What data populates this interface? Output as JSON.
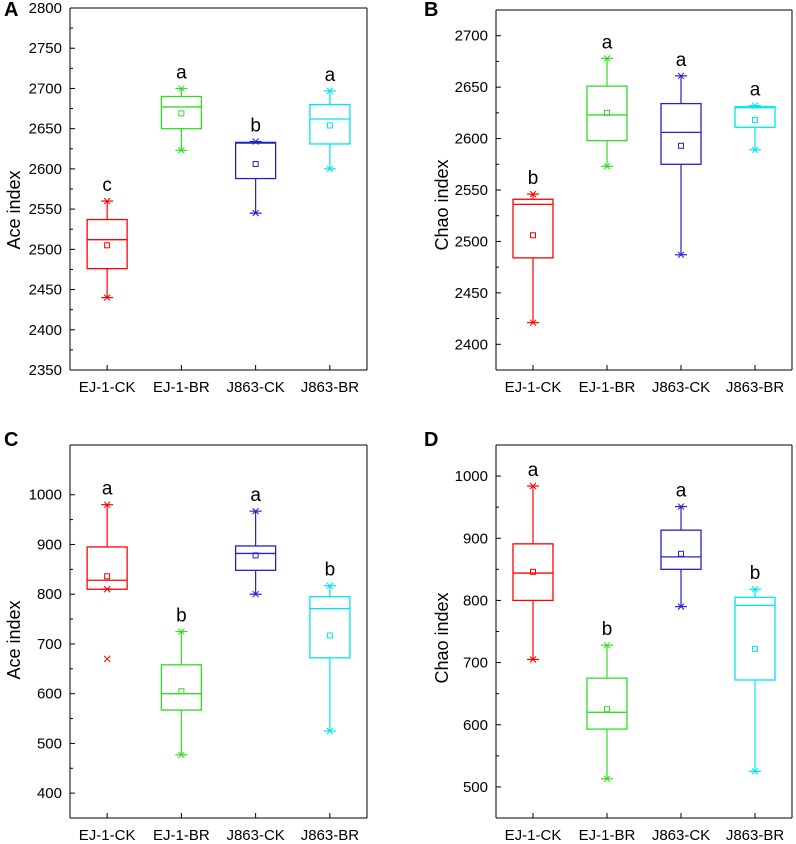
{
  "figure": {
    "panels": [
      {
        "panel_label": "A"
      },
      {
        "panel_label": "B"
      },
      {
        "panel_label": "C"
      },
      {
        "panel_label": "D"
      }
    ]
  },
  "chart_data": [
    {
      "type": "box",
      "panel_label": "A",
      "ylabel": "Ace index",
      "ylim": [
        2350,
        2800
      ],
      "yticks": [
        2350,
        2400,
        2450,
        2500,
        2550,
        2600,
        2650,
        2700,
        2750,
        2800
      ],
      "categories": [
        "EJ-1-CK",
        "EJ-1-BR",
        "J863-CK",
        "J863-BR"
      ],
      "colors": [
        "#ff0000",
        "#33dd22",
        "#2222cc",
        "#00e5ee"
      ],
      "boxes": [
        {
          "min": 2440,
          "q1": 2476,
          "median": 2512,
          "q3": 2537,
          "max": 2560,
          "mean": 2505,
          "outliers": [],
          "letter": "c"
        },
        {
          "min": 2623,
          "q1": 2650,
          "median": 2677,
          "q3": 2690,
          "max": 2700,
          "mean": 2669,
          "outliers": [],
          "letter": "a"
        },
        {
          "min": 2545,
          "q1": 2588,
          "median": 2632,
          "q3": 2633,
          "max": 2634,
          "mean": 2606,
          "outliers": [],
          "letter": "b"
        },
        {
          "min": 2600,
          "q1": 2631,
          "median": 2662,
          "q3": 2680,
          "max": 2697,
          "mean": 2654,
          "outliers": [],
          "letter": "a"
        }
      ]
    },
    {
      "type": "box",
      "panel_label": "B",
      "ylabel": "Chao index",
      "ylim": [
        2375,
        2725
      ],
      "yticks": [
        2400,
        2450,
        2500,
        2550,
        2600,
        2650,
        2700
      ],
      "categories": [
        "EJ-1-CK",
        "EJ-1-BR",
        "J863-CK",
        "J863-BR"
      ],
      "colors": [
        "#ff0000",
        "#33dd22",
        "#2222cc",
        "#00e5ee"
      ],
      "boxes": [
        {
          "min": 2421,
          "q1": 2484,
          "median": 2536,
          "q3": 2541,
          "max": 2546,
          "mean": 2506,
          "outliers": [],
          "letter": "b"
        },
        {
          "min": 2573,
          "q1": 2598,
          "median": 2623,
          "q3": 2651,
          "max": 2678,
          "mean": 2625,
          "outliers": [],
          "letter": "a"
        },
        {
          "min": 2487,
          "q1": 2575,
          "median": 2606,
          "q3": 2634,
          "max": 2661,
          "mean": 2593,
          "outliers": [],
          "letter": "a"
        },
        {
          "min": 2589,
          "q1": 2611,
          "median": 2630,
          "q3": 2631,
          "max": 2632,
          "mean": 2618,
          "outliers": [],
          "letter": "a"
        }
      ]
    },
    {
      "type": "box",
      "panel_label": "C",
      "ylabel": "Ace index",
      "ylim": [
        350,
        1100
      ],
      "yticks": [
        400,
        500,
        600,
        700,
        800,
        900,
        1000
      ],
      "categories": [
        "EJ-1-CK",
        "EJ-1-BR",
        "J863-CK",
        "J863-BR"
      ],
      "colors": [
        "#ff0000",
        "#33dd22",
        "#2222cc",
        "#00e5ee"
      ],
      "boxes": [
        {
          "min": 810,
          "q1": 810,
          "median": 828,
          "q3": 895,
          "max": 980,
          "mean": 836,
          "outliers": [
            670
          ],
          "letter": "a"
        },
        {
          "min": 477,
          "q1": 567,
          "median": 600,
          "q3": 658,
          "max": 725,
          "mean": 605,
          "outliers": [],
          "letter": "b"
        },
        {
          "min": 800,
          "q1": 848,
          "median": 882,
          "q3": 897,
          "max": 967,
          "mean": 878,
          "outliers": [],
          "letter": "a"
        },
        {
          "min": 525,
          "q1": 672,
          "median": 771,
          "q3": 795,
          "max": 817,
          "mean": 717,
          "outliers": [],
          "letter": "b"
        }
      ]
    },
    {
      "type": "box",
      "panel_label": "D",
      "ylabel": "Chao index",
      "ylim": [
        450,
        1050
      ],
      "yticks": [
        500,
        600,
        700,
        800,
        900,
        1000
      ],
      "categories": [
        "EJ-1-CK",
        "EJ-1-BR",
        "J863-CK",
        "J863-BR"
      ],
      "colors": [
        "#ff0000",
        "#33dd22",
        "#2222cc",
        "#00e5ee"
      ],
      "boxes": [
        {
          "min": 705,
          "q1": 800,
          "median": 844,
          "q3": 891,
          "max": 984,
          "mean": 846,
          "outliers": [],
          "letter": "a"
        },
        {
          "min": 513,
          "q1": 593,
          "median": 620,
          "q3": 675,
          "max": 728,
          "mean": 625,
          "outliers": [],
          "letter": "b"
        },
        {
          "min": 790,
          "q1": 850,
          "median": 870,
          "q3": 913,
          "max": 951,
          "mean": 875,
          "outliers": [],
          "letter": "a"
        },
        {
          "min": 525,
          "q1": 672,
          "median": 792,
          "q3": 805,
          "max": 818,
          "mean": 722,
          "outliers": [],
          "letter": "b"
        }
      ]
    }
  ]
}
